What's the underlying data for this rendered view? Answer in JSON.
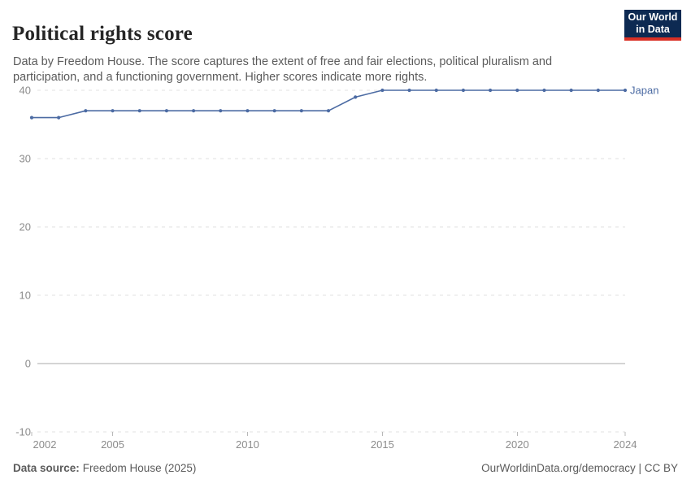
{
  "header": {
    "title": "Political rights score",
    "subtitle": "Data by Freedom House. The score captures the extent of free and fair elections, political pluralism and participation, and a functioning government. Higher scores indicate more rights."
  },
  "logo": {
    "line1": "Our World",
    "line2": "in Data"
  },
  "chart_data": {
    "type": "line",
    "title": "Political rights score",
    "x": [
      2002,
      2003,
      2004,
      2005,
      2006,
      2007,
      2008,
      2009,
      2010,
      2011,
      2012,
      2013,
      2014,
      2015,
      2016,
      2017,
      2018,
      2019,
      2020,
      2021,
      2022,
      2023,
      2024
    ],
    "series": [
      {
        "name": "Japan",
        "color": "#4c6ba3",
        "values": [
          36,
          36,
          37,
          37,
          37,
          37,
          37,
          37,
          37,
          37,
          37,
          37,
          39,
          40,
          40,
          40,
          40,
          40,
          40,
          40,
          40,
          40,
          40
        ]
      }
    ],
    "xlabel": "",
    "ylabel": "",
    "xticks": [
      2002,
      2005,
      2010,
      2015,
      2020,
      2024
    ],
    "yticks": [
      -10,
      0,
      10,
      20,
      30,
      40
    ],
    "xlim": [
      2002,
      2024
    ],
    "ylim": [
      -10,
      40
    ],
    "grid": "horizontal-dashed",
    "legend_position": "end-of-line-label"
  },
  "footer": {
    "source_label": "Data source:",
    "source_value": "Freedom House (2025)",
    "credit": "OurWorldinData.org/democracy | CC BY"
  },
  "colors": {
    "line": "#4c6ba3",
    "grid": "#e0e0e0",
    "zero_line": "#a8a8a8",
    "tick": "#b8b8b8",
    "axis_text": "#8c8c8c",
    "title_text": "#252525",
    "subtitle_text": "#5b5b5b",
    "footer_text": "#5b5b5b",
    "logo_bg": "#0d2a52",
    "logo_accent": "#d93025"
  }
}
